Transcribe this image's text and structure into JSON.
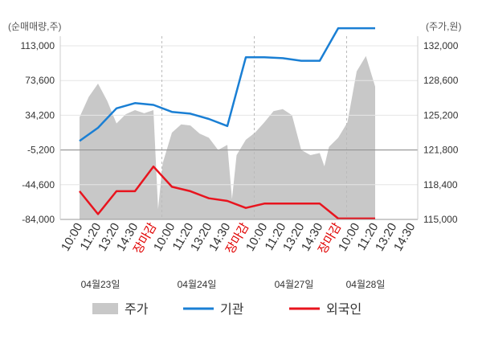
{
  "chart_data": {
    "type": "line",
    "left_axis_unit": "(순매매량,주)",
    "right_axis_unit": "(주가,원)",
    "left_ticks": [
      "113,000",
      "73,600",
      "34,200",
      "-5,200",
      "-44,600",
      "-84,000"
    ],
    "right_ticks": [
      "132,000",
      "128,600",
      "125,200",
      "121,800",
      "118,400",
      "115,000"
    ],
    "left_ylim": [
      -84000,
      113000
    ],
    "right_ylim": [
      115000,
      132000
    ],
    "x_ticks": [
      "10:00",
      "11:20",
      "13:20",
      "14:30",
      "장마감",
      "10:00",
      "11:20",
      "13:20",
      "14:30",
      "장마감",
      "10:00",
      "11:20",
      "13:20",
      "14:30",
      "장마감",
      "10:00",
      "11:20",
      "13:20",
      "14:30"
    ],
    "x_tick_colors": [
      "#333333",
      "#333333",
      "#333333",
      "#333333",
      "#e00000",
      "#333333",
      "#333333",
      "#333333",
      "#333333",
      "#e00000",
      "#333333",
      "#333333",
      "#333333",
      "#333333",
      "#e00000",
      "#333333",
      "#333333",
      "#333333",
      "#333333"
    ],
    "dates": [
      "04월23일",
      "04월24일",
      "04월27일",
      "04월28일"
    ],
    "legend": [
      {
        "label": "주가",
        "color": "#c8c8c8",
        "type": "area"
      },
      {
        "label": "기관",
        "color": "#1a7fd4",
        "type": "line"
      },
      {
        "label": "외국인",
        "color": "#e8141e",
        "type": "line"
      }
    ],
    "series": [
      {
        "name": "기관",
        "axis": "left",
        "color": "#1a7fd4",
        "x": [
          0,
          1,
          2,
          3,
          4,
          5,
          6,
          7,
          8,
          9,
          10,
          11,
          12,
          13,
          14,
          15,
          16
        ],
        "values": [
          5000,
          20000,
          42000,
          48000,
          46000,
          38000,
          36000,
          30000,
          22000,
          100000,
          100000,
          99000,
          96000,
          96000,
          133000,
          133000,
          133000
        ]
      },
      {
        "name": "외국인",
        "axis": "left",
        "color": "#e8141e",
        "x": [
          0,
          1,
          2,
          3,
          4,
          5,
          6,
          7,
          8,
          9,
          10,
          11,
          12,
          13,
          14,
          15,
          16
        ],
        "values": [
          -52000,
          -78000,
          -52000,
          -52000,
          -24000,
          -47000,
          -52000,
          -60000,
          -63000,
          -71000,
          -66000,
          -66000,
          -66000,
          -66000,
          -83000,
          -83000,
          -83000
        ]
      },
      {
        "name": "주가",
        "axis": "right",
        "color": "#c8c8c8",
        "x": [
          0,
          0.5,
          1,
          1.5,
          2,
          2.5,
          3,
          3.5,
          4,
          4.25,
          4.5,
          5,
          5.5,
          6,
          6.5,
          7,
          7.5,
          8,
          8.25,
          8.5,
          9,
          9.5,
          10,
          10.5,
          11,
          11.5,
          12,
          12.5,
          13,
          13.25,
          13.5,
          14,
          14.5,
          15,
          15.5,
          16
        ],
        "values": [
          125000,
          127000,
          128300,
          126600,
          124400,
          125300,
          125700,
          125400,
          125700,
          116000,
          120500,
          123500,
          124300,
          124200,
          123400,
          123000,
          121800,
          122300,
          117000,
          121300,
          122800,
          123500,
          124500,
          125600,
          125800,
          125200,
          121800,
          121300,
          121500,
          120200,
          122100,
          123000,
          124500,
          129500,
          131000,
          128000
        ]
      }
    ]
  }
}
